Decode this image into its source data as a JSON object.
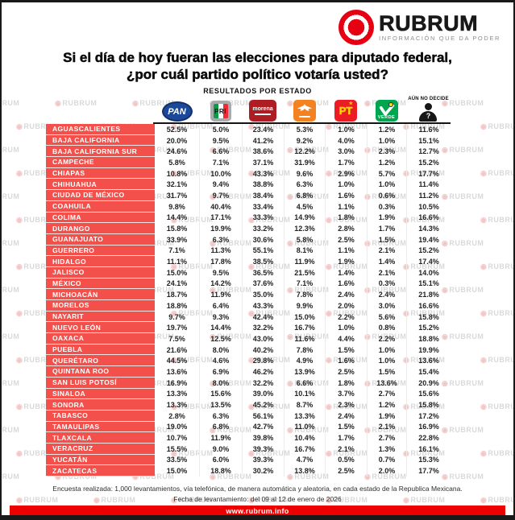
{
  "brand": {
    "name": "RUBRUM",
    "tagline": "INFORMACIÓN QUE DA PODER",
    "watermark": "RUBRUM",
    "website": "www.rubrum.info",
    "logo_red": "#e60012",
    "bar_red": "#ec0000",
    "state_cell_red": "#f3504b"
  },
  "title": {
    "line1": "Si el día de hoy fueran las elecciones para diputado federal,",
    "line2": "¿por cuál partido político votaría usted?"
  },
  "subtitle": "RESULTADOS POR ESTADO",
  "parties": [
    {
      "id": "pan",
      "label": "PAN",
      "color": "#1c4899"
    },
    {
      "id": "pri",
      "label": "PRI",
      "color": "#a8aaad"
    },
    {
      "id": "morena",
      "label": "morena",
      "color": "#ae1d23"
    },
    {
      "id": "mc",
      "label": "MC",
      "color": "#f58220"
    },
    {
      "id": "pt",
      "label": "PT",
      "color": "#ec1c24"
    },
    {
      "id": "verde",
      "label": "VERDE",
      "color": "#00a550"
    },
    {
      "id": "aun-no-decide",
      "label": "AÚN NO DECIDE",
      "color": "#161616"
    }
  ],
  "chart_data": {
    "type": "table",
    "title": "Si el día de hoy fueran las elecciones para diputado federal, ¿por cuál partido político votaría usted?",
    "subtitle": "RESULTADOS POR ESTADO",
    "units": "%",
    "columns": [
      "PAN",
      "PRI",
      "MORENA",
      "MC",
      "PT",
      "VERDE",
      "AÚN NO DECIDE"
    ],
    "rows": [
      {
        "state": "AGUASCALIENTES",
        "values": [
          52.5,
          5.0,
          23.4,
          5.3,
          1.0,
          1.2,
          11.6
        ]
      },
      {
        "state": "BAJA CALIFORNIA",
        "values": [
          20.0,
          9.5,
          41.2,
          9.2,
          4.0,
          1.0,
          15.1
        ]
      },
      {
        "state": "BAJA CALIFORNIA SUR",
        "values": [
          24.6,
          6.6,
          38.6,
          12.2,
          3.0,
          2.3,
          12.7
        ]
      },
      {
        "state": "CAMPECHE",
        "values": [
          5.8,
          7.1,
          37.1,
          31.9,
          1.7,
          1.2,
          15.2
        ]
      },
      {
        "state": "CHIAPAS",
        "values": [
          10.8,
          10.0,
          43.3,
          9.6,
          2.9,
          5.7,
          17.7
        ]
      },
      {
        "state": "CHIHUAHUA",
        "values": [
          32.1,
          9.4,
          38.8,
          6.3,
          1.0,
          1.0,
          11.4
        ]
      },
      {
        "state": "CIUDAD DE MÉXICO",
        "values": [
          31.7,
          9.7,
          38.4,
          6.8,
          1.6,
          0.6,
          11.2
        ]
      },
      {
        "state": "COAHUILA",
        "values": [
          9.8,
          40.4,
          33.4,
          4.5,
          1.1,
          0.3,
          10.5
        ]
      },
      {
        "state": "COLIMA",
        "values": [
          14.4,
          17.1,
          33.3,
          14.9,
          1.8,
          1.9,
          16.6
        ]
      },
      {
        "state": "DURANGO",
        "values": [
          15.8,
          19.9,
          33.2,
          12.3,
          2.8,
          1.7,
          14.3
        ]
      },
      {
        "state": "GUANAJUATO",
        "values": [
          33.9,
          6.3,
          30.6,
          5.8,
          2.5,
          1.5,
          19.4
        ]
      },
      {
        "state": "GUERRERO",
        "values": [
          7.1,
          11.3,
          55.1,
          8.1,
          1.1,
          2.1,
          15.2
        ]
      },
      {
        "state": "HIDALGO",
        "values": [
          11.1,
          17.8,
          38.5,
          11.9,
          1.9,
          1.4,
          17.4
        ]
      },
      {
        "state": "JALISCO",
        "values": [
          15.0,
          9.5,
          36.5,
          21.5,
          1.4,
          2.1,
          14.0
        ]
      },
      {
        "state": "MÉXICO",
        "values": [
          24.1,
          14.2,
          37.6,
          7.1,
          1.6,
          0.3,
          15.1
        ]
      },
      {
        "state": "MICHOACÁN",
        "values": [
          18.7,
          11.9,
          35.0,
          7.8,
          2.4,
          2.4,
          21.8
        ]
      },
      {
        "state": "MORELOS",
        "values": [
          18.8,
          6.4,
          43.3,
          9.9,
          2.0,
          3.0,
          16.6
        ]
      },
      {
        "state": "NAYARIT",
        "values": [
          9.7,
          9.3,
          42.4,
          15.0,
          2.2,
          5.6,
          15.8
        ]
      },
      {
        "state": "NUEVO LEÓN",
        "values": [
          19.7,
          14.4,
          32.2,
          16.7,
          1.0,
          0.8,
          15.2
        ]
      },
      {
        "state": "OAXACA",
        "values": [
          7.5,
          12.5,
          43.0,
          11.6,
          4.4,
          2.2,
          18.8
        ]
      },
      {
        "state": "PUEBLA",
        "values": [
          21.6,
          8.0,
          40.2,
          7.8,
          1.5,
          1.0,
          19.9
        ]
      },
      {
        "state": "QUERÉTARO",
        "values": [
          44.5,
          4.6,
          29.8,
          4.9,
          1.6,
          1.0,
          13.6
        ]
      },
      {
        "state": "QUINTANA ROO",
        "values": [
          13.6,
          6.9,
          46.2,
          13.9,
          2.5,
          1.5,
          15.4
        ]
      },
      {
        "state": "SAN LUIS POTOSÍ",
        "values": [
          16.9,
          8.0,
          32.2,
          6.6,
          1.8,
          13.6,
          20.9
        ]
      },
      {
        "state": "SINALOA",
        "values": [
          13.3,
          15.6,
          39.0,
          10.1,
          3.7,
          2.7,
          15.6
        ]
      },
      {
        "state": "SONORA",
        "values": [
          13.3,
          13.5,
          45.2,
          8.7,
          2.3,
          1.2,
          15.8
        ]
      },
      {
        "state": "TABASCO",
        "values": [
          2.8,
          6.3,
          56.1,
          13.3,
          2.4,
          1.9,
          17.2
        ]
      },
      {
        "state": "TAMAULIPAS",
        "values": [
          19.0,
          6.8,
          42.7,
          11.0,
          1.5,
          2.1,
          16.9
        ]
      },
      {
        "state": "TLAXCALA",
        "values": [
          10.7,
          11.9,
          39.8,
          10.4,
          1.7,
          2.7,
          22.8
        ]
      },
      {
        "state": "VERACRUZ",
        "values": [
          15.5,
          9.0,
          39.3,
          16.7,
          2.1,
          1.3,
          16.1
        ]
      },
      {
        "state": "YUCATÁN",
        "values": [
          33.5,
          6.0,
          39.3,
          4.7,
          0.5,
          0.7,
          15.3
        ]
      },
      {
        "state": "ZACATECAS",
        "values": [
          15.0,
          18.8,
          30.2,
          13.8,
          2.5,
          2.0,
          17.7
        ]
      }
    ]
  },
  "footer": {
    "line1": "Encuesta realizada: 1,000 levantamientos, vía telefónica, de manera automática y aleatoria, en cada estado de la Republica Mexicana.",
    "line2": "Fecha de levantamiento: del 09 al 12 de enero de 2026"
  }
}
